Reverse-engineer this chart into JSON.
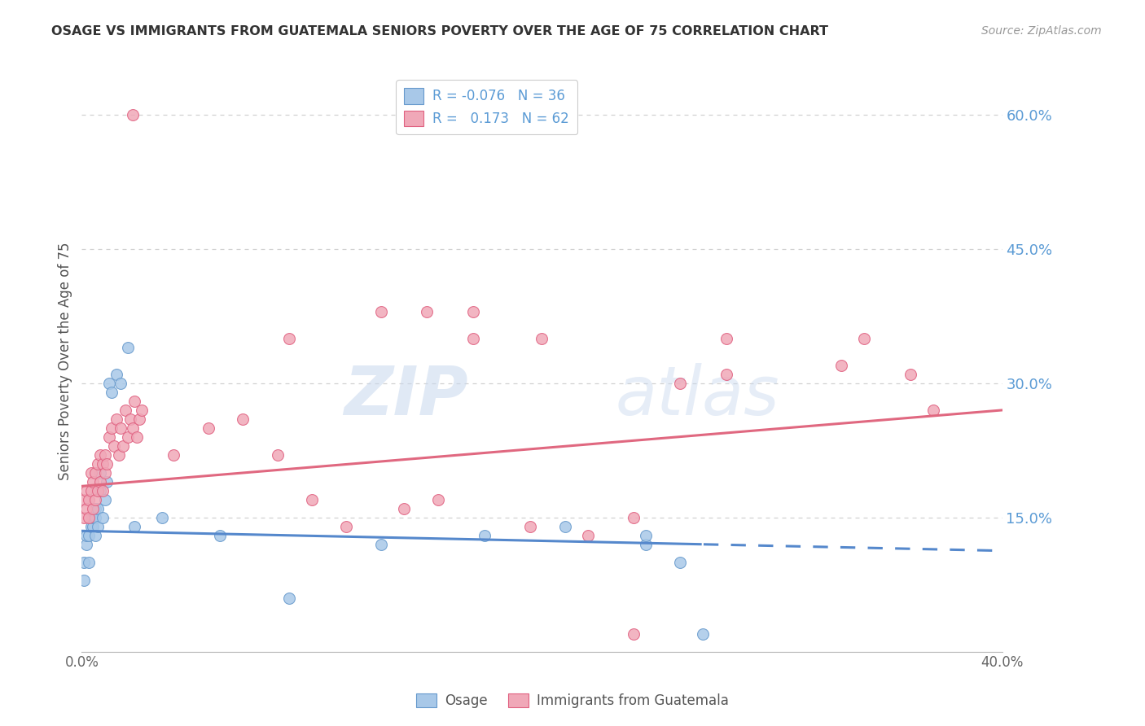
{
  "title": "OSAGE VS IMMIGRANTS FROM GUATEMALA SENIORS POVERTY OVER THE AGE OF 75 CORRELATION CHART",
  "source": "Source: ZipAtlas.com",
  "ylabel": "Seniors Poverty Over the Age of 75",
  "xlim": [
    0.0,
    0.4
  ],
  "ylim": [
    0.0,
    0.65
  ],
  "yticks_right": [
    0.15,
    0.3,
    0.45,
    0.6
  ],
  "grid_color": "#d0d0d0",
  "background_color": "#ffffff",
  "blue_color": "#a8c8e8",
  "pink_color": "#f0a8b8",
  "blue_edge": "#6699cc",
  "pink_edge": "#e06080",
  "blue_R": -0.076,
  "blue_N": 36,
  "pink_R": 0.173,
  "pink_N": 62,
  "legend_label_blue": "Osage",
  "legend_label_pink": "Immigrants from Guatemala",
  "watermark": "ZIPatlas",
  "blue_line_color": "#5588cc",
  "pink_line_color": "#e06880",
  "osage_x": [
    0.001,
    0.001,
    0.002,
    0.002,
    0.003,
    0.003,
    0.004,
    0.004,
    0.005,
    0.005,
    0.006,
    0.006,
    0.006,
    0.007,
    0.007,
    0.008,
    0.008,
    0.009,
    0.01,
    0.011,
    0.012,
    0.013,
    0.015,
    0.017,
    0.02,
    0.023,
    0.035,
    0.06,
    0.09,
    0.13,
    0.175,
    0.21,
    0.245,
    0.245,
    0.26,
    0.27
  ],
  "osage_y": [
    0.08,
    0.1,
    0.12,
    0.13,
    0.1,
    0.13,
    0.14,
    0.15,
    0.14,
    0.15,
    0.16,
    0.13,
    0.15,
    0.14,
    0.16,
    0.18,
    0.2,
    0.15,
    0.17,
    0.19,
    0.3,
    0.29,
    0.31,
    0.3,
    0.34,
    0.14,
    0.15,
    0.13,
    0.06,
    0.12,
    0.13,
    0.14,
    0.12,
    0.13,
    0.1,
    0.02
  ],
  "guatemala_x": [
    0.001,
    0.001,
    0.002,
    0.002,
    0.003,
    0.003,
    0.004,
    0.004,
    0.005,
    0.005,
    0.006,
    0.006,
    0.007,
    0.007,
    0.008,
    0.008,
    0.009,
    0.009,
    0.01,
    0.01,
    0.011,
    0.012,
    0.013,
    0.014,
    0.015,
    0.016,
    0.017,
    0.018,
    0.019,
    0.02,
    0.021,
    0.022,
    0.023,
    0.024,
    0.025,
    0.026,
    0.04,
    0.055,
    0.07,
    0.085,
    0.1,
    0.115,
    0.14,
    0.155,
    0.17,
    0.195,
    0.22,
    0.24,
    0.26,
    0.28,
    0.17,
    0.28,
    0.33,
    0.34,
    0.36,
    0.37,
    0.022,
    0.09,
    0.13,
    0.15,
    0.2,
    0.24
  ],
  "guatemala_y": [
    0.15,
    0.17,
    0.16,
    0.18,
    0.15,
    0.17,
    0.18,
    0.2,
    0.16,
    0.19,
    0.17,
    0.2,
    0.18,
    0.21,
    0.19,
    0.22,
    0.18,
    0.21,
    0.2,
    0.22,
    0.21,
    0.24,
    0.25,
    0.23,
    0.26,
    0.22,
    0.25,
    0.23,
    0.27,
    0.24,
    0.26,
    0.25,
    0.28,
    0.24,
    0.26,
    0.27,
    0.22,
    0.25,
    0.26,
    0.22,
    0.17,
    0.14,
    0.16,
    0.17,
    0.35,
    0.14,
    0.13,
    0.15,
    0.3,
    0.31,
    0.38,
    0.35,
    0.32,
    0.35,
    0.31,
    0.27,
    0.6,
    0.35,
    0.38,
    0.38,
    0.35,
    0.02
  ]
}
